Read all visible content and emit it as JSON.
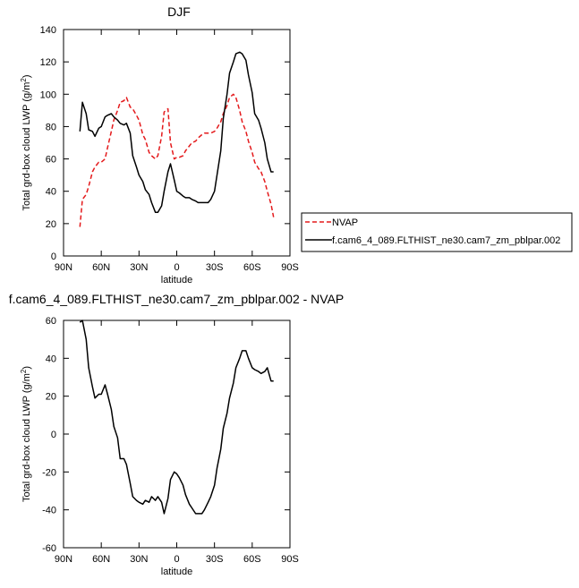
{
  "figure": {
    "top_title": "DJF",
    "bottom_title": "f.cam6_4_089.FLTHIST_ne30.cam7_zm_pblpar.002 - NVAP"
  },
  "legend": {
    "entries": [
      {
        "label": "NVAP",
        "color": "#e41a1c",
        "dash": "dashed"
      },
      {
        "label": "f.cam6_4_089.FLTHIST_ne30.cam7_zm_pblpar.002",
        "color": "#000000",
        "dash": "solid"
      }
    ],
    "placement": "right of top panel"
  },
  "chart_data": [
    {
      "type": "line",
      "title": "DJF",
      "xlabel": "latitude",
      "ylabel_prefix": "Total grd-box cloud LWP (g/m",
      "ylabel_sup": "2",
      "ylabel_suffix": ")",
      "xlim": [
        90,
        -90
      ],
      "ylim": [
        0,
        140
      ],
      "xticks": [
        90,
        60,
        30,
        0,
        -30,
        -60,
        -90
      ],
      "xtick_labels": [
        "90N",
        "60N",
        "30N",
        "0",
        "30S",
        "60S",
        "90S"
      ],
      "yticks": [
        0,
        20,
        40,
        60,
        80,
        100,
        120,
        140
      ],
      "ytick_labels": [
        "0",
        "20",
        "40",
        "60",
        "80",
        "100",
        "120",
        "140"
      ],
      "grid": false,
      "series": [
        {
          "name": "NVAP",
          "color": "#e41a1c",
          "dash": "dashed",
          "x": [
            77,
            75,
            72,
            70,
            67,
            65,
            62,
            60,
            57,
            55,
            52,
            50,
            47,
            45,
            42,
            40,
            37,
            35,
            32,
            30,
            27,
            25,
            22,
            20,
            17,
            15,
            12,
            10,
            7,
            5,
            2,
            0,
            -2,
            -5,
            -7,
            -10,
            -12,
            -15,
            -17,
            -20,
            -22,
            -25,
            -27,
            -30,
            -32,
            -35,
            -37,
            -40,
            -42,
            -45,
            -47,
            -50,
            -52,
            -55,
            -57,
            -60,
            -62,
            -65,
            -67,
            -70,
            -72,
            -75,
            -77
          ],
          "y": [
            18,
            35,
            38,
            43,
            52,
            55,
            58,
            58,
            60,
            67,
            77,
            84,
            90,
            95,
            96,
            98,
            92,
            91,
            87,
            84,
            75,
            72,
            64,
            62,
            60,
            62,
            74,
            89,
            91,
            70,
            60,
            61,
            61,
            62,
            65,
            68,
            70,
            71,
            73,
            75,
            76,
            76,
            76,
            77,
            79,
            83,
            88,
            93,
            98,
            100,
            98,
            90,
            83,
            77,
            71,
            64,
            58,
            54,
            52,
            46,
            40,
            32,
            24
          ]
        },
        {
          "name": "f.cam6_4_089.FLTHIST_ne30.cam7_zm_pblpar.002",
          "color": "#000000",
          "dash": "solid",
          "x": [
            77,
            75,
            72,
            70,
            67,
            65,
            62,
            60,
            57,
            55,
            52,
            50,
            47,
            45,
            42,
            40,
            37,
            35,
            32,
            30,
            27,
            25,
            22,
            20,
            17,
            15,
            12,
            10,
            7,
            5,
            2,
            0,
            -2,
            -5,
            -7,
            -10,
            -12,
            -15,
            -17,
            -20,
            -22,
            -25,
            -27,
            -30,
            -32,
            -35,
            -37,
            -40,
            -42,
            -45,
            -47,
            -50,
            -52,
            -55,
            -57,
            -60,
            -62,
            -65,
            -67,
            -70,
            -72,
            -75,
            -77
          ],
          "y": [
            77,
            95,
            88,
            78,
            77,
            74,
            79,
            80,
            86,
            87,
            88,
            86,
            84,
            82,
            81,
            82,
            76,
            62,
            55,
            50,
            46,
            41,
            38,
            33,
            27,
            27,
            31,
            40,
            52,
            57,
            47,
            40,
            39,
            37,
            36,
            36,
            35,
            34,
            33,
            33,
            33,
            33,
            35,
            40,
            50,
            65,
            85,
            100,
            113,
            120,
            125,
            126,
            125,
            121,
            112,
            101,
            88,
            84,
            79,
            70,
            60,
            52,
            52
          ]
        }
      ]
    },
    {
      "type": "line",
      "title": "f.cam6_4_089.FLTHIST_ne30.cam7_zm_pblpar.002 - NVAP",
      "xlabel": "latitude",
      "ylabel_prefix": "Total grd-box cloud LWP (g/m",
      "ylabel_sup": "2",
      "ylabel_suffix": ")",
      "xlim": [
        90,
        -90
      ],
      "ylim": [
        -60,
        60
      ],
      "xticks": [
        90,
        60,
        30,
        0,
        -30,
        -60,
        -90
      ],
      "xtick_labels": [
        "90N",
        "60N",
        "30N",
        "0",
        "30S",
        "60S",
        "90S"
      ],
      "yticks": [
        -60,
        -40,
        -20,
        0,
        20,
        40,
        60
      ],
      "ytick_labels": [
        "-60",
        "-40",
        "-20",
        "0",
        "20",
        "40",
        "60"
      ],
      "grid": false,
      "series": [
        {
          "color": "#000000",
          "dash": "solid",
          "x": [
            77,
            75,
            72,
            70,
            67,
            65,
            62,
            60,
            57,
            55,
            52,
            50,
            47,
            45,
            42,
            40,
            37,
            35,
            32,
            30,
            27,
            25,
            22,
            20,
            17,
            15,
            12,
            10,
            7,
            5,
            2,
            0,
            -2,
            -5,
            -7,
            -10,
            -12,
            -15,
            -17,
            -20,
            -22,
            -25,
            -27,
            -30,
            -32,
            -35,
            -37,
            -40,
            -42,
            -45,
            -47,
            -50,
            -52,
            -55,
            -57,
            -60,
            -62,
            -65,
            -67,
            -70,
            -72,
            -75,
            -77
          ],
          "y": [
            59,
            60,
            50,
            35,
            25,
            19,
            21,
            21,
            26,
            21,
            13,
            4,
            -2,
            -13,
            -13,
            -16,
            -26,
            -33,
            -35,
            -36,
            -37,
            -35,
            -36,
            -33,
            -35,
            -33,
            -36,
            -42,
            -34,
            -24,
            -20,
            -21,
            -23,
            -27,
            -32,
            -37,
            -39,
            -42,
            -42,
            -42,
            -40,
            -36,
            -33,
            -27,
            -18,
            -8,
            3,
            11,
            19,
            27,
            35,
            40,
            44,
            44,
            40,
            35,
            34,
            33,
            32,
            33,
            35,
            28,
            28
          ]
        }
      ]
    }
  ]
}
